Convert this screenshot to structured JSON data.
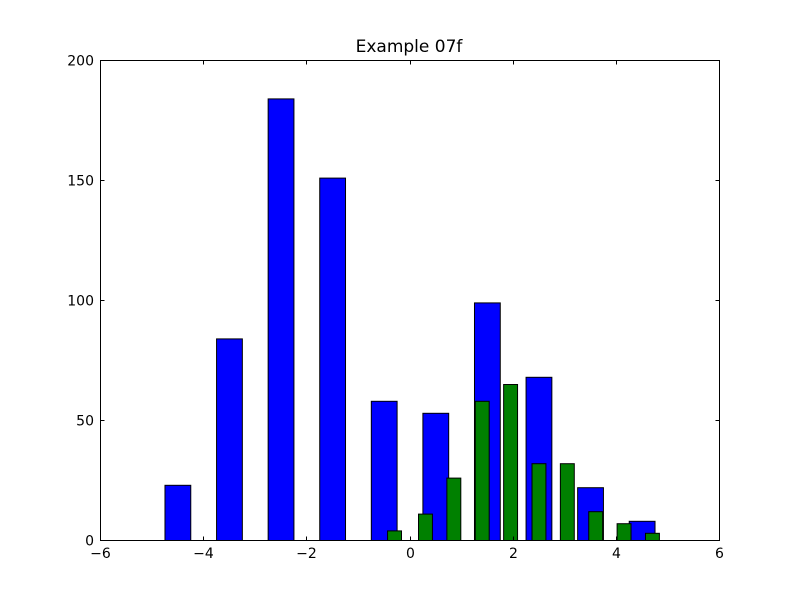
{
  "chart_data": {
    "type": "bar",
    "title": "Example 07f",
    "xlabel": "",
    "ylabel": "",
    "xlim": [
      -6,
      6
    ],
    "ylim": [
      0,
      200
    ],
    "xticks": [
      -6,
      -4,
      -2,
      0,
      2,
      4,
      6
    ],
    "yticks": [
      0,
      50,
      100,
      150,
      200
    ],
    "xtick_labels": [
      "−6",
      "−4",
      "−2",
      "0",
      "2",
      "4",
      "6"
    ],
    "ytick_labels": [
      "0",
      "50",
      "100",
      "150",
      "200"
    ],
    "grid": false,
    "series": [
      {
        "color": "#0000ff",
        "bar_width": 0.5,
        "x": [
          -4.5,
          -3.5,
          -2.5,
          -1.5,
          -0.5,
          0.5,
          1.5,
          2.5,
          3.5,
          4.5
        ],
        "values": [
          23,
          84,
          184,
          151,
          58,
          53,
          99,
          68,
          22,
          8
        ]
      },
      {
        "color": "#008000",
        "bar_width": 0.27,
        "x": [
          -0.3,
          0.3,
          0.85,
          1.4,
          1.95,
          2.5,
          3.05,
          3.6,
          4.15,
          4.7
        ],
        "values": [
          4,
          11,
          26,
          58,
          65,
          32,
          32,
          12,
          7,
          3
        ]
      }
    ]
  }
}
